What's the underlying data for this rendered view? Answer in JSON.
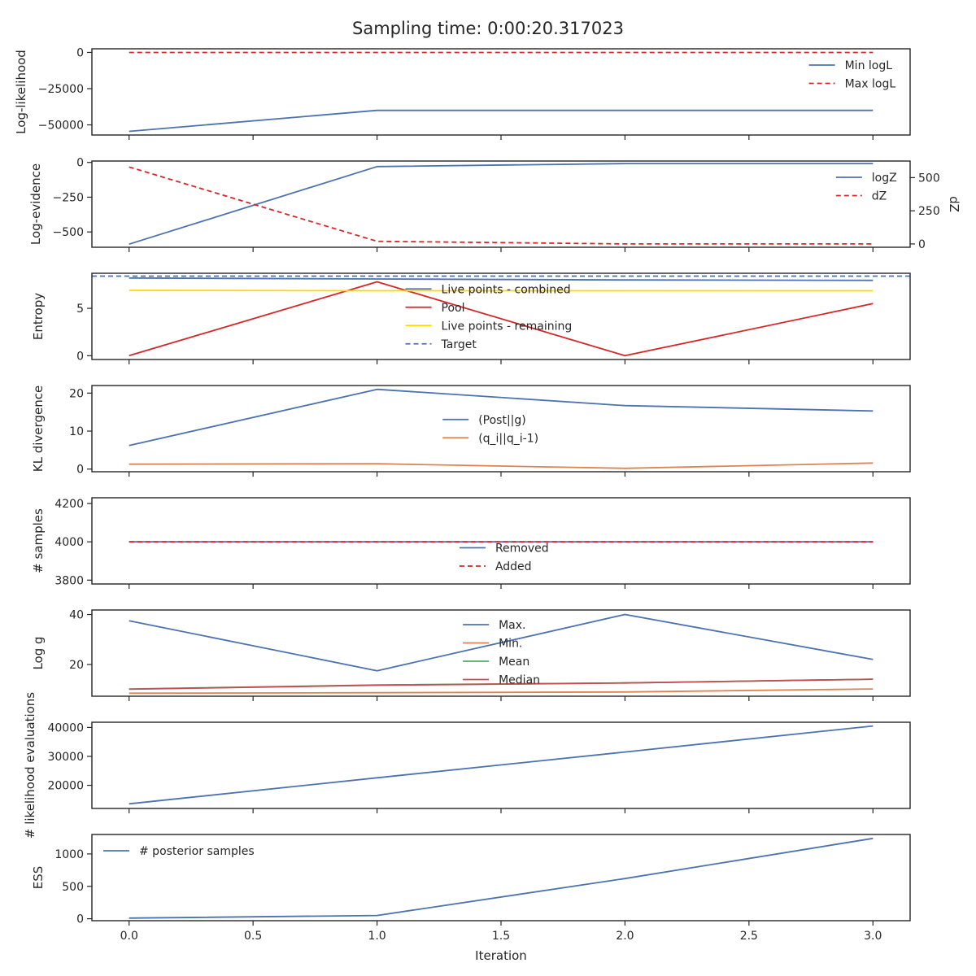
{
  "figure": {
    "title": "Sampling time: 0:00:20.317023",
    "xlabel": "Iteration"
  },
  "colors": {
    "blue": "#4C72B0",
    "orange": "#DD8452",
    "green": "#55A868",
    "red": "#C44E52",
    "bright_red": "#D62728",
    "yellow": "#FFD700",
    "axis": "#262626"
  },
  "chart_data": [
    {
      "type": "line",
      "ylabel": "Log-likelihood",
      "x": [
        0,
        1,
        2,
        3
      ],
      "xlim": [
        -0.15,
        3.15
      ],
      "ylim": [
        -57000,
        2500
      ],
      "yticks": [
        0,
        -25000,
        -50000
      ],
      "ytick_labels": [
        "0",
        "−25000",
        "−50000"
      ],
      "legend_position": "upper-right",
      "series": [
        {
          "name": "Min logL",
          "values": [
            -54500,
            -40000,
            -40000,
            -40000
          ],
          "color": "blue",
          "dash": "solid"
        },
        {
          "name": "Max logL",
          "values": [
            0,
            0,
            0,
            0
          ],
          "color": "bright_red",
          "dash": "dashed"
        }
      ]
    },
    {
      "type": "line",
      "ylabel": "Log-evidence",
      "right_ylabel": "dZ",
      "x": [
        0,
        1,
        2,
        3
      ],
      "xlim": [
        -0.15,
        3.15
      ],
      "ylim": [
        -610,
        10
      ],
      "yticks": [
        0,
        -250,
        -500
      ],
      "ytick_labels": [
        "0",
        "−250",
        "−500"
      ],
      "right_ylim": [
        -25,
        625
      ],
      "right_yticks": [
        0,
        250,
        500
      ],
      "right_ytick_labels": [
        "0",
        "250",
        "500"
      ],
      "legend_position": "upper-right",
      "series": [
        {
          "name": "logZ",
          "values": [
            -588,
            -30,
            -8,
            -8
          ],
          "color": "blue",
          "dash": "solid",
          "axis": "left"
        },
        {
          "name": "dZ",
          "values": [
            580,
            20,
            0,
            0
          ],
          "color": "bright_red",
          "dash": "dashed",
          "axis": "right"
        }
      ]
    },
    {
      "type": "line",
      "ylabel": "Entropy",
      "x": [
        0,
        1,
        2,
        3
      ],
      "xlim": [
        -0.15,
        3.15
      ],
      "ylim": [
        -0.4,
        8.7
      ],
      "yticks": [
        0,
        5
      ],
      "ytick_labels": [
        "0",
        "5"
      ],
      "legend_position": "center",
      "series": [
        {
          "name": "Live points - combined",
          "values": [
            8.2,
            8.1,
            8.0,
            7.95
          ],
          "color": "blue",
          "dash": "solid"
        },
        {
          "name": "Pool",
          "values": [
            0,
            7.8,
            0,
            5.5
          ],
          "color": "bright_red",
          "dash": "solid"
        },
        {
          "name": "Live points - remaining",
          "values": [
            6.9,
            6.85,
            6.85,
            6.85
          ],
          "color": "yellow",
          "dash": "solid"
        },
        {
          "name": "Target",
          "values": [
            8.4,
            8.4,
            8.4,
            8.4
          ],
          "color": "blue",
          "dash": "dashed",
          "full_width": true
        }
      ]
    },
    {
      "type": "line",
      "ylabel": "KL divergence",
      "x": [
        0,
        1,
        2,
        3
      ],
      "xlim": [
        -0.15,
        3.15
      ],
      "ylim": [
        -0.7,
        22
      ],
      "yticks": [
        0,
        10,
        20
      ],
      "ytick_labels": [
        "0",
        "10",
        "20"
      ],
      "legend_position": "center",
      "series": [
        {
          "name": "(Post||g)",
          "values": [
            6.2,
            21,
            16.7,
            15.3
          ],
          "color": "blue",
          "dash": "solid"
        },
        {
          "name": "(q_i||q_i-1)",
          "values": [
            1.3,
            1.4,
            0.2,
            1.6
          ],
          "color": "orange",
          "dash": "solid"
        }
      ]
    },
    {
      "type": "line",
      "ylabel": "# samples",
      "x": [
        0,
        1,
        2,
        3
      ],
      "xlim": [
        -0.15,
        3.15
      ],
      "ylim": [
        3780,
        4230
      ],
      "yticks": [
        4200,
        4000,
        3800
      ],
      "ytick_labels": [
        "4200",
        "4000",
        "3800"
      ],
      "legend_position": "lower-center",
      "series": [
        {
          "name": "Removed",
          "values": [
            4000,
            4000,
            4000,
            4000
          ],
          "color": "blue",
          "dash": "solid"
        },
        {
          "name": "Added",
          "values": [
            4000,
            4000,
            4000,
            4000
          ],
          "color": "bright_red",
          "dash": "dashed"
        }
      ]
    },
    {
      "type": "line",
      "ylabel": "Log g",
      "x": [
        0,
        1,
        2,
        3
      ],
      "xlim": [
        -0.15,
        3.15
      ],
      "ylim": [
        7.3,
        41.8
      ],
      "yticks": [
        40,
        20
      ],
      "ytick_labels": [
        "40",
        "20"
      ],
      "legend_position": "upper-center",
      "series": [
        {
          "name": "Max.",
          "values": [
            37.5,
            17.5,
            40,
            22
          ],
          "color": "blue",
          "dash": "solid"
        },
        {
          "name": "Min.",
          "values": [
            8.5,
            8.7,
            9.0,
            10.2
          ],
          "color": "orange",
          "dash": "solid"
        },
        {
          "name": "Mean",
          "values": [
            10.2,
            11.8,
            12.6,
            14.1
          ],
          "color": "green",
          "dash": "solid"
        },
        {
          "name": "Median",
          "values": [
            10.1,
            11.7,
            12.6,
            14.1
          ],
          "color": "red",
          "dash": "solid"
        }
      ]
    },
    {
      "type": "line",
      "ylabel": "# likelihood evaluations",
      "x": [
        0,
        1,
        2,
        3
      ],
      "xlim": [
        -0.15,
        3.15
      ],
      "ylim": [
        12000,
        41800
      ],
      "yticks": [
        40000,
        30000,
        20000
      ],
      "ytick_labels": [
        "40000",
        "30000",
        "20000"
      ],
      "series": [
        {
          "name": "",
          "values": [
            13600,
            22600,
            31500,
            40500
          ],
          "color": "blue",
          "dash": "solid"
        }
      ]
    },
    {
      "type": "line",
      "ylabel": "ESS",
      "x": [
        0,
        1,
        2,
        3
      ],
      "xlim": [
        -0.15,
        3.15
      ],
      "ylim": [
        -30,
        1300
      ],
      "yticks": [
        1000,
        500,
        0
      ],
      "ytick_labels": [
        "1000",
        "500",
        "0"
      ],
      "xticks": [
        0,
        0.5,
        1,
        1.5,
        2,
        2.5,
        3
      ],
      "xtick_labels": [
        "0.0",
        "0.5",
        "1.0",
        "1.5",
        "2.0",
        "2.5",
        "3.0"
      ],
      "legend_position": "upper-left",
      "series": [
        {
          "name": "# posterior samples",
          "values": [
            10,
            50,
            620,
            1240
          ],
          "color": "blue",
          "dash": "solid"
        }
      ]
    }
  ]
}
